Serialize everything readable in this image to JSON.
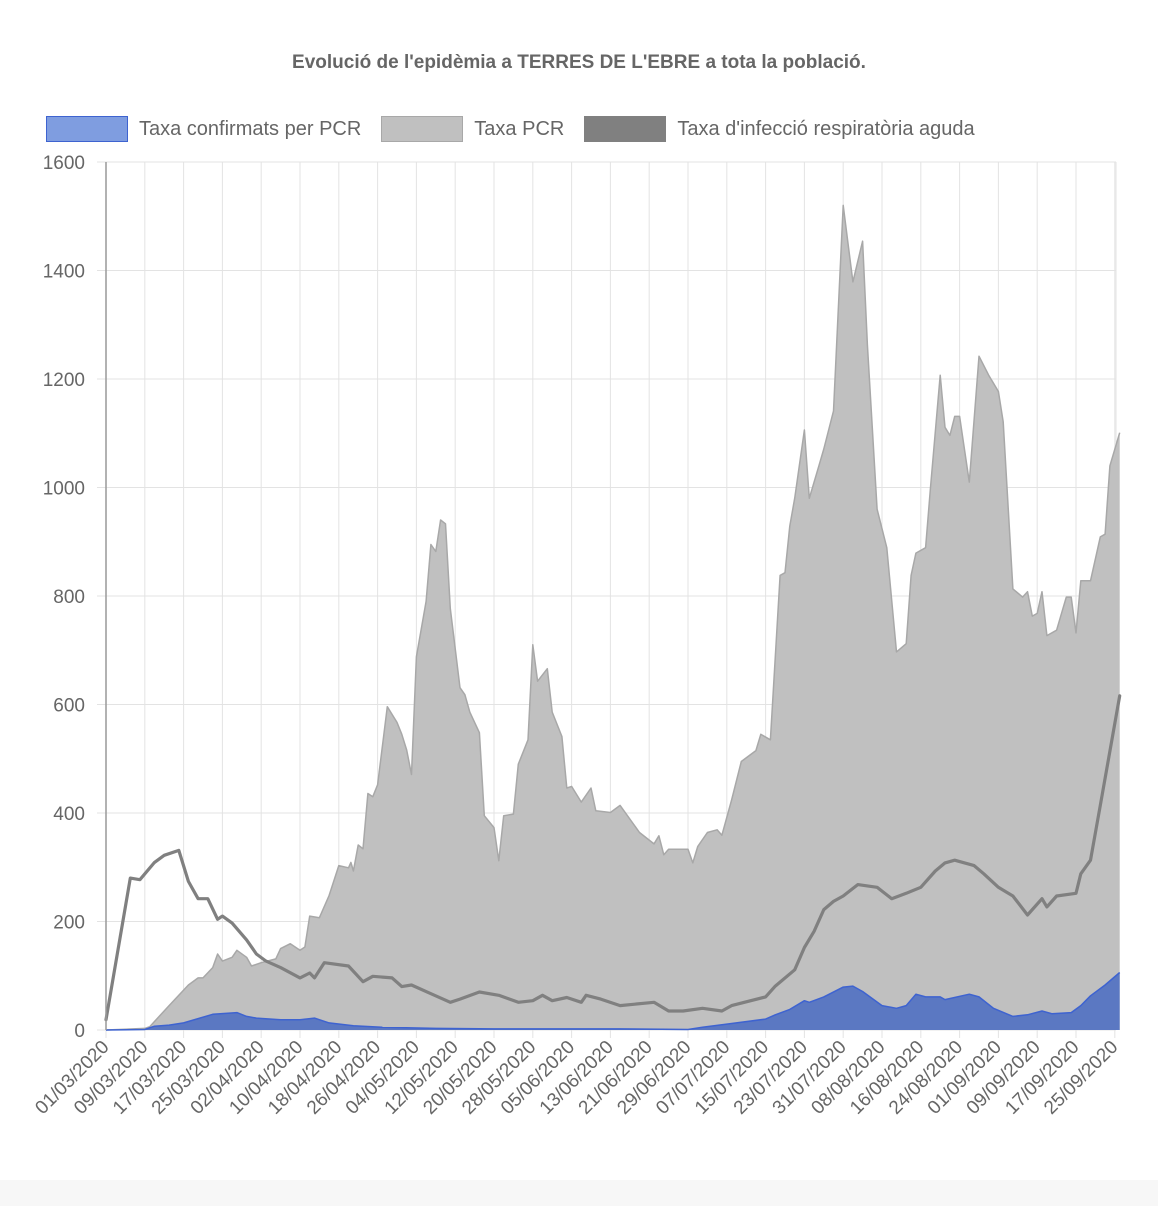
{
  "chart_data": {
    "type": "area",
    "title": "Evolució de l'epidèmia a TERRES DE L'EBRE a tota la població.",
    "xlabel": "",
    "ylabel": "",
    "x_unit": "days since 01/03/2020",
    "x_range": [
      0,
      209
    ],
    "ylim": [
      0,
      1600
    ],
    "y_ticks": [
      0,
      200,
      400,
      600,
      800,
      1000,
      1200,
      1400,
      1600
    ],
    "x_tick_labels": [
      "01/03/2020",
      "09/03/2020",
      "17/03/2020",
      "25/03/2020",
      "02/04/2020",
      "10/04/2020",
      "18/04/2020",
      "26/04/2020",
      "04/05/2020",
      "12/05/2020",
      "20/05/2020",
      "28/05/2020",
      "05/06/2020",
      "13/06/2020",
      "21/06/2020",
      "29/06/2020",
      "07/07/2020",
      "15/07/2020",
      "23/07/2020",
      "31/07/2020",
      "08/08/2020",
      "16/08/2020",
      "24/08/2020",
      "01/09/2020",
      "09/09/2020",
      "17/09/2020",
      "25/09/2020"
    ],
    "x_tick_step_days": 8,
    "grid": true,
    "legend_position": "top",
    "series": [
      {
        "name": "Taxa confirmats per PCR",
        "color": "#5b78c2",
        "border": "#3e63d0",
        "legend_color": "#7f9de0",
        "fill": true,
        "points": [
          [
            0,
            0
          ],
          [
            8,
            1
          ],
          [
            10,
            7
          ],
          [
            13,
            9
          ],
          [
            16,
            13
          ],
          [
            22,
            29
          ],
          [
            27,
            32
          ],
          [
            29,
            25
          ],
          [
            31,
            22
          ],
          [
            36,
            19
          ],
          [
            40,
            19
          ],
          [
            43,
            22
          ],
          [
            46,
            13
          ],
          [
            51,
            8
          ],
          [
            57,
            5
          ],
          [
            68,
            3
          ],
          [
            80,
            2
          ],
          [
            106,
            2
          ],
          [
            120,
            1
          ],
          [
            123,
            5
          ],
          [
            129,
            12
          ],
          [
            136,
            20
          ],
          [
            138,
            28
          ],
          [
            141,
            38
          ],
          [
            144,
            54
          ],
          [
            145,
            51
          ],
          [
            148,
            61
          ],
          [
            152,
            79
          ],
          [
            154,
            81
          ],
          [
            156,
            71
          ],
          [
            160,
            45
          ],
          [
            163,
            40
          ],
          [
            165,
            45
          ],
          [
            167,
            66
          ],
          [
            169,
            61
          ],
          [
            172,
            61
          ],
          [
            173,
            56
          ],
          [
            178,
            66
          ],
          [
            180,
            61
          ],
          [
            183,
            40
          ],
          [
            187,
            25
          ],
          [
            190,
            28
          ],
          [
            193,
            35
          ],
          [
            195,
            30
          ],
          [
            199,
            32
          ],
          [
            201,
            45
          ],
          [
            203,
            63
          ],
          [
            206,
            83
          ],
          [
            209,
            106
          ]
        ]
      },
      {
        "name": "Taxa PCR",
        "color": "#c0c0c0",
        "border": "#a8a8a8",
        "legend_color": "#c0c0c0",
        "fill": true,
        "points": [
          [
            0,
            0
          ],
          [
            8,
            3
          ],
          [
            9,
            6
          ],
          [
            13,
            45
          ],
          [
            17,
            83
          ],
          [
            19,
            96
          ],
          [
            20,
            96
          ],
          [
            22,
            115
          ],
          [
            23,
            140
          ],
          [
            24,
            127
          ],
          [
            26,
            134
          ],
          [
            27,
            147
          ],
          [
            29,
            134
          ],
          [
            30,
            118
          ],
          [
            32,
            124
          ],
          [
            35,
            131
          ],
          [
            36,
            150
          ],
          [
            38,
            159
          ],
          [
            40,
            147
          ],
          [
            41,
            153
          ],
          [
            42,
            210
          ],
          [
            44,
            207
          ],
          [
            46,
            248
          ],
          [
            48,
            303
          ],
          [
            50,
            299
          ],
          [
            50.5,
            309
          ],
          [
            51,
            293
          ],
          [
            52,
            341
          ],
          [
            53,
            334
          ],
          [
            54,
            436
          ],
          [
            55,
            430
          ],
          [
            56,
            452
          ],
          [
            58,
            596
          ],
          [
            60,
            567
          ],
          [
            61,
            545
          ],
          [
            62,
            516
          ],
          [
            63,
            471
          ],
          [
            64,
            688
          ],
          [
            66,
            790
          ],
          [
            67,
            895
          ],
          [
            68,
            882
          ],
          [
            69,
            940
          ],
          [
            70,
            933
          ],
          [
            71,
            777
          ],
          [
            73,
            631
          ],
          [
            74,
            618
          ],
          [
            75,
            586
          ],
          [
            77,
            548
          ],
          [
            78,
            395
          ],
          [
            80,
            373
          ],
          [
            81,
            312
          ],
          [
            82,
            395
          ],
          [
            84,
            398
          ],
          [
            85,
            490
          ],
          [
            87,
            535
          ],
          [
            88,
            710
          ],
          [
            89,
            643
          ],
          [
            91,
            666
          ],
          [
            92,
            586
          ],
          [
            94,
            541
          ],
          [
            95,
            446
          ],
          [
            96,
            449
          ],
          [
            98,
            420
          ],
          [
            100,
            446
          ],
          [
            101,
            404
          ],
          [
            104,
            401
          ],
          [
            106,
            414
          ],
          [
            110,
            364
          ],
          [
            113,
            343
          ],
          [
            114,
            358
          ],
          [
            115,
            323
          ],
          [
            116,
            333
          ],
          [
            120,
            333
          ],
          [
            121,
            308
          ],
          [
            122,
            338
          ],
          [
            124,
            364
          ],
          [
            126,
            369
          ],
          [
            127,
            359
          ],
          [
            129,
            424
          ],
          [
            131,
            495
          ],
          [
            134,
            515
          ],
          [
            135,
            545
          ],
          [
            137,
            535
          ],
          [
            139,
            838
          ],
          [
            140,
            843
          ],
          [
            141,
            929
          ],
          [
            142,
            980
          ],
          [
            144,
            1106
          ],
          [
            145,
            980
          ],
          [
            147,
            1040
          ],
          [
            148,
            1071
          ],
          [
            150,
            1141
          ],
          [
            152,
            1520
          ],
          [
            154,
            1379
          ],
          [
            156,
            1454
          ],
          [
            157,
            1263
          ],
          [
            159,
            960
          ],
          [
            161,
            889
          ],
          [
            163,
            697
          ],
          [
            165,
            712
          ],
          [
            166,
            838
          ],
          [
            167,
            879
          ],
          [
            169,
            889
          ],
          [
            170,
            1000
          ],
          [
            172,
            1207
          ],
          [
            173,
            1111
          ],
          [
            174,
            1096
          ],
          [
            175,
            1131
          ],
          [
            176,
            1131
          ],
          [
            178,
            1010
          ],
          [
            180,
            1242
          ],
          [
            182,
            1207
          ],
          [
            184,
            1177
          ],
          [
            185,
            1121
          ],
          [
            187,
            813
          ],
          [
            189,
            798
          ],
          [
            190,
            808
          ],
          [
            191,
            763
          ],
          [
            192,
            768
          ],
          [
            193,
            808
          ],
          [
            194,
            727
          ],
          [
            196,
            737
          ],
          [
            198,
            798
          ],
          [
            199,
            798
          ],
          [
            200,
            732
          ],
          [
            201,
            828
          ],
          [
            203,
            828
          ],
          [
            205,
            909
          ],
          [
            206,
            914
          ],
          [
            207,
            1040
          ],
          [
            209,
            1101
          ]
        ]
      },
      {
        "name": "Taxa d'infecció respiratòria aguda",
        "color": "#808080",
        "border": "#808080",
        "legend_color": "#808080",
        "fill": false,
        "points": [
          [
            0,
            19
          ],
          [
            5,
            280
          ],
          [
            7,
            277
          ],
          [
            10,
            309
          ],
          [
            12,
            322
          ],
          [
            15,
            331
          ],
          [
            17,
            274
          ],
          [
            19,
            242
          ],
          [
            21,
            242
          ],
          [
            23,
            204
          ],
          [
            24,
            210
          ],
          [
            26,
            197
          ],
          [
            29,
            166
          ],
          [
            31,
            140
          ],
          [
            33,
            127
          ],
          [
            36,
            115
          ],
          [
            40,
            96
          ],
          [
            42,
            105
          ],
          [
            43,
            96
          ],
          [
            45,
            124
          ],
          [
            50,
            118
          ],
          [
            53,
            89
          ],
          [
            55,
            99
          ],
          [
            59,
            96
          ],
          [
            61,
            80
          ],
          [
            63,
            83
          ],
          [
            67,
            67
          ],
          [
            71,
            51
          ],
          [
            73,
            57
          ],
          [
            77,
            70
          ],
          [
            81,
            64
          ],
          [
            85,
            51
          ],
          [
            88,
            54
          ],
          [
            90,
            64
          ],
          [
            92,
            54
          ],
          [
            95,
            60
          ],
          [
            98,
            51
          ],
          [
            99,
            64
          ],
          [
            102,
            57
          ],
          [
            106,
            45
          ],
          [
            113,
            51
          ],
          [
            116,
            35
          ],
          [
            119,
            35
          ],
          [
            123,
            40
          ],
          [
            127,
            35
          ],
          [
            129,
            45
          ],
          [
            136,
            61
          ],
          [
            138,
            81
          ],
          [
            142,
            111
          ],
          [
            144,
            152
          ],
          [
            146,
            182
          ],
          [
            148,
            222
          ],
          [
            150,
            237
          ],
          [
            152,
            247
          ],
          [
            155,
            268
          ],
          [
            159,
            263
          ],
          [
            162,
            242
          ],
          [
            165,
            252
          ],
          [
            168,
            263
          ],
          [
            171,
            293
          ],
          [
            173,
            308
          ],
          [
            175,
            313
          ],
          [
            179,
            303
          ],
          [
            181,
            288
          ],
          [
            184,
            263
          ],
          [
            187,
            247
          ],
          [
            190,
            212
          ],
          [
            193,
            242
          ],
          [
            194,
            227
          ],
          [
            196,
            247
          ],
          [
            200,
            252
          ],
          [
            201,
            288
          ],
          [
            203,
            313
          ],
          [
            205,
            414
          ],
          [
            209,
            616
          ]
        ]
      }
    ]
  }
}
